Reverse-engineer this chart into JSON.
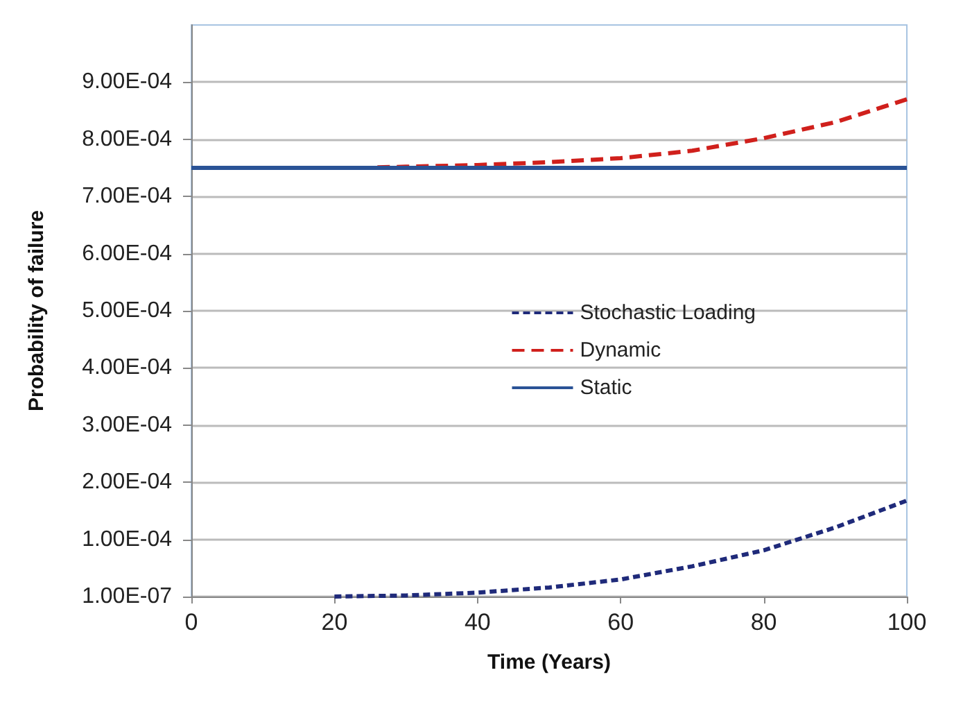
{
  "chart_data": {
    "type": "line",
    "xlabel": "Time (Years)",
    "ylabel": "Probability of failure",
    "xlim": [
      0,
      100
    ],
    "xticks": [
      0,
      20,
      40,
      60,
      80,
      100
    ],
    "ylim": [
      1e-07,
      0.001
    ],
    "yticks": [
      {
        "value": 1e-07,
        "label": "1.00E-07"
      },
      {
        "value": 0.0001,
        "label": "1.00E-04"
      },
      {
        "value": 0.0002,
        "label": "2.00E-04"
      },
      {
        "value": 0.0003,
        "label": "3.00E-04"
      },
      {
        "value": 0.0004,
        "label": "4.00E-04"
      },
      {
        "value": 0.0005,
        "label": "5.00E-04"
      },
      {
        "value": 0.0006,
        "label": "6.00E-04"
      },
      {
        "value": 0.0007,
        "label": "7.00E-04"
      },
      {
        "value": 0.0008,
        "label": "8.00E-04"
      },
      {
        "value": 0.0009,
        "label": "9.00E-04"
      }
    ],
    "grid": "y",
    "legend": "right",
    "marker": "none",
    "series": [
      {
        "name": "Stochastic Loading",
        "color": "#1f2a7a",
        "line_style": "dotted",
        "x": [
          20,
          30,
          40,
          50,
          60,
          70,
          80,
          90,
          100
        ],
        "values": [
          1e-07,
          2e-06,
          7e-06,
          1.6e-05,
          3e-05,
          5.3e-05,
          8.1e-05,
          0.000121,
          0.000168
        ]
      },
      {
        "name": "Dynamic",
        "color": "#d0201c",
        "line_style": "dashed",
        "x": [
          26,
          30,
          40,
          50,
          60,
          70,
          80,
          90,
          100
        ],
        "values": [
          0.000751,
          0.000752,
          0.000755,
          0.00076,
          0.000767,
          0.00078,
          0.000802,
          0.00083,
          0.00087
        ]
      },
      {
        "name": "Static",
        "color": "#2a5396",
        "line_style": "solid",
        "x": [
          0,
          100
        ],
        "values": [
          0.00075,
          0.00075
        ]
      }
    ]
  }
}
